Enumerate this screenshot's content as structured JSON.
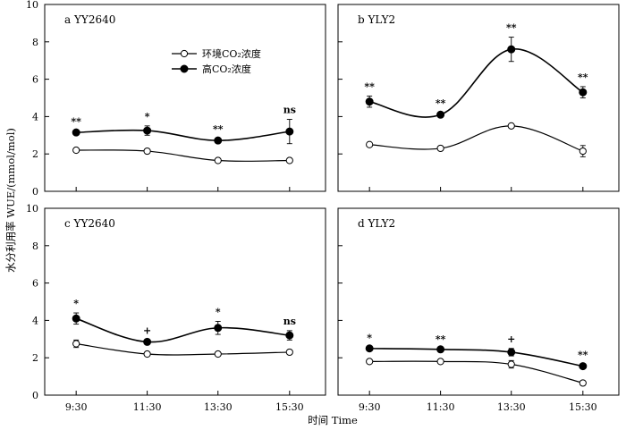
{
  "chart_data": {
    "type": "line",
    "ylabel": "水分利用率 WUE/(mmol/mol)",
    "xlabel": "时间 Time",
    "x": [
      "9:30",
      "11:30",
      "13:30",
      "15:30"
    ],
    "ylim": [
      0,
      10
    ],
    "yticks": [
      0,
      2,
      4,
      6,
      8,
      10
    ],
    "legend": {
      "placement": "top-left of panel a",
      "entries": [
        {
          "name": "环境CO₂浓度",
          "marker": "open-circle"
        },
        {
          "name": "高CO₂浓度",
          "marker": "filled-circle"
        }
      ]
    },
    "panels": [
      {
        "id": "a",
        "label": "a  YY2640",
        "series": [
          {
            "name": "环境CO₂浓度",
            "values": [
              2.2,
              2.15,
              1.65,
              1.65
            ],
            "errors": [
              0.05,
              0.05,
              0.05,
              0.05
            ]
          },
          {
            "name": "高CO₂浓度",
            "values": [
              3.15,
              3.25,
              2.72,
              3.2
            ],
            "errors": [
              0.08,
              0.25,
              0.1,
              0.65
            ]
          }
        ],
        "significance": [
          "**",
          "*",
          "**",
          "ns"
        ]
      },
      {
        "id": "b",
        "label": "b  YLY2",
        "series": [
          {
            "name": "环境CO₂浓度",
            "values": [
              2.5,
              2.3,
              3.5,
              2.15
            ],
            "errors": [
              0.05,
              0.05,
              0.05,
              0.3
            ]
          },
          {
            "name": "高CO₂浓度",
            "values": [
              4.8,
              4.1,
              7.6,
              5.3
            ],
            "errors": [
              0.3,
              0.1,
              0.65,
              0.3
            ]
          }
        ],
        "significance": [
          "**",
          "**",
          "**",
          "**"
        ]
      },
      {
        "id": "c",
        "label": "c  YY2640",
        "series": [
          {
            "name": "环境CO₂浓度",
            "values": [
              2.75,
              2.2,
              2.2,
              2.3
            ],
            "errors": [
              0.2,
              0.05,
              0.05,
              0.05
            ]
          },
          {
            "name": "高CO₂浓度",
            "values": [
              4.1,
              2.85,
              3.6,
              3.2
            ],
            "errors": [
              0.3,
              0.1,
              0.35,
              0.25
            ]
          }
        ],
        "significance": [
          "*",
          "+",
          "*",
          "ns"
        ]
      },
      {
        "id": "d",
        "label": "d  YLY2",
        "series": [
          {
            "name": "环境CO₂浓度",
            "values": [
              1.8,
              1.8,
              1.65,
              0.65
            ],
            "errors": [
              0.05,
              0.05,
              0.2,
              0.05
            ]
          },
          {
            "name": "高CO₂浓度",
            "values": [
              2.5,
              2.45,
              2.3,
              1.55
            ],
            "errors": [
              0.05,
              0.05,
              0.2,
              0.1
            ]
          }
        ],
        "significance": [
          "*",
          "**",
          "+",
          "**"
        ]
      }
    ]
  }
}
